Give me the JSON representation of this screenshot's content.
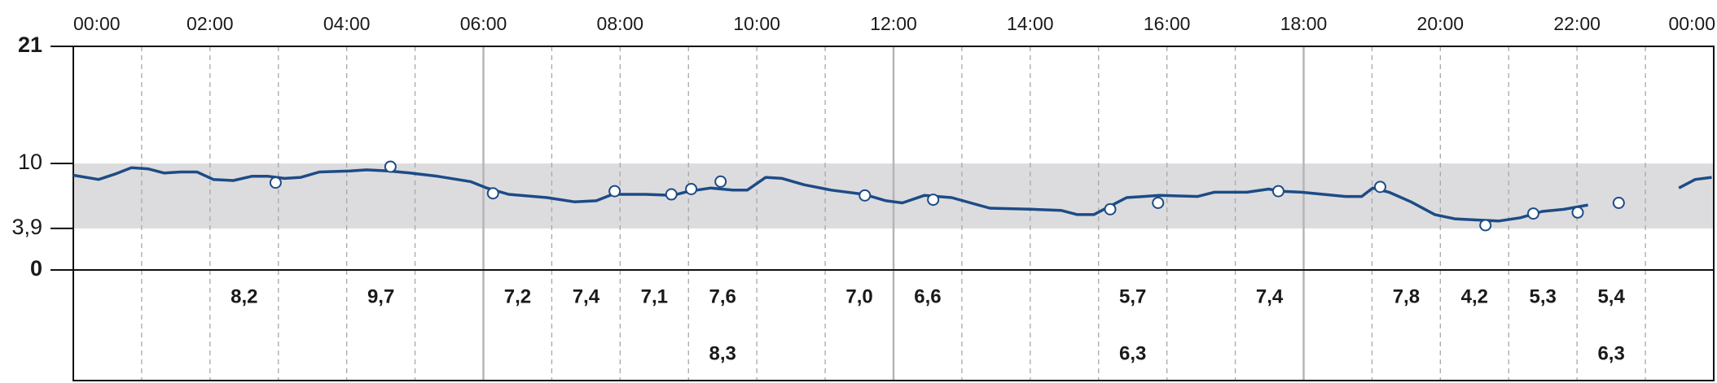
{
  "chart_data": {
    "type": "line",
    "xlim": [
      0,
      24
    ],
    "xticks": [
      {
        "value": 0,
        "label": "00:00"
      },
      {
        "value": 2,
        "label": "02:00"
      },
      {
        "value": 4,
        "label": "04:00"
      },
      {
        "value": 6,
        "label": "06:00"
      },
      {
        "value": 8,
        "label": "08:00"
      },
      {
        "value": 10,
        "label": "10:00"
      },
      {
        "value": 12,
        "label": "12:00"
      },
      {
        "value": 14,
        "label": "14:00"
      },
      {
        "value": 16,
        "label": "16:00"
      },
      {
        "value": 18,
        "label": "18:00"
      },
      {
        "value": 20,
        "label": "20:00"
      },
      {
        "value": 22,
        "label": "22:00"
      },
      {
        "value": 24,
        "label": "00:00"
      }
    ],
    "ylim": [
      0,
      21
    ],
    "yticks": [
      0,
      {
        "value": 3.9,
        "label": "3,9"
      },
      10,
      21
    ],
    "target_range": [
      3.9,
      10
    ],
    "target_color": "#dcdcde",
    "series": [
      {
        "color": "#1d4b86",
        "x": [
          0,
          0.37,
          0.61,
          0.85,
          1.09,
          1.33,
          1.57,
          1.81,
          2.05,
          2.34,
          2.61,
          2.85,
          3.09,
          3.33,
          3.6,
          4.05,
          4.29,
          4.61,
          4.93,
          5.33,
          5.81,
          6.05,
          6.37,
          6.93,
          7.33,
          7.65,
          7.89,
          8.37,
          8.77,
          9.01,
          9.33,
          9.65,
          9.86,
          10.13,
          10.37,
          10.69,
          11.09,
          11.57,
          11.89,
          12.13,
          12.45,
          12.85,
          13.41,
          14.05,
          14.45,
          14.69,
          14.93,
          15.17,
          15.41,
          15.89,
          16.45,
          16.69,
          17.17,
          17.49,
          17.65,
          17.97,
          18.29,
          18.61,
          18.85,
          19.01,
          19.25,
          19.57,
          19.92,
          20.21,
          20.53,
          20.85,
          21.17,
          21.49,
          21.81,
          22.16,
          null,
          23.49,
          23.73,
          23.97
        ],
        "values": [
          8.9,
          8.5,
          9.0,
          9.6,
          9.5,
          9.1,
          9.2,
          9.2,
          8.5,
          8.4,
          8.8,
          8.8,
          8.6,
          8.7,
          9.2,
          9.3,
          9.4,
          9.3,
          9.1,
          8.8,
          8.3,
          7.7,
          7.1,
          6.8,
          6.4,
          6.5,
          7.1,
          7.1,
          7.0,
          7.4,
          7.7,
          7.5,
          7.5,
          8.7,
          8.6,
          8.0,
          7.5,
          7.1,
          6.5,
          6.3,
          7.0,
          6.8,
          5.8,
          5.7,
          5.6,
          5.2,
          5.2,
          6.0,
          6.8,
          7.0,
          6.9,
          7.3,
          7.3,
          7.6,
          7.4,
          7.3,
          7.1,
          6.9,
          6.9,
          7.7,
          7.3,
          6.4,
          5.2,
          4.8,
          4.7,
          4.6,
          4.9,
          5.5,
          5.7,
          6.1,
          null,
          7.7,
          8.5,
          8.7
        ]
      }
    ],
    "readings": {
      "color": "#1d4b86",
      "x": [
        2.96,
        4.64,
        6.14,
        7.92,
        8.75,
        9.04,
        9.47,
        11.58,
        12.58,
        15.17,
        15.87,
        17.63,
        19.12,
        20.66,
        21.36,
        22.01,
        22.61
      ],
      "values": [
        8.2,
        9.7,
        7.2,
        7.4,
        7.1,
        7.6,
        8.3,
        7.0,
        6.6,
        5.7,
        6.3,
        7.4,
        7.8,
        4.2,
        5.3,
        5.4,
        6.3
      ],
      "value_labels": [
        "8,2",
        "9,7",
        "7,2",
        "7,4",
        "7,1",
        "7,6",
        "8,3",
        "7,0",
        "6,6",
        "5,7",
        "6,3",
        "7,4",
        "7,8",
        "4,2",
        "5,3",
        "5,4",
        "6,3"
      ]
    }
  }
}
